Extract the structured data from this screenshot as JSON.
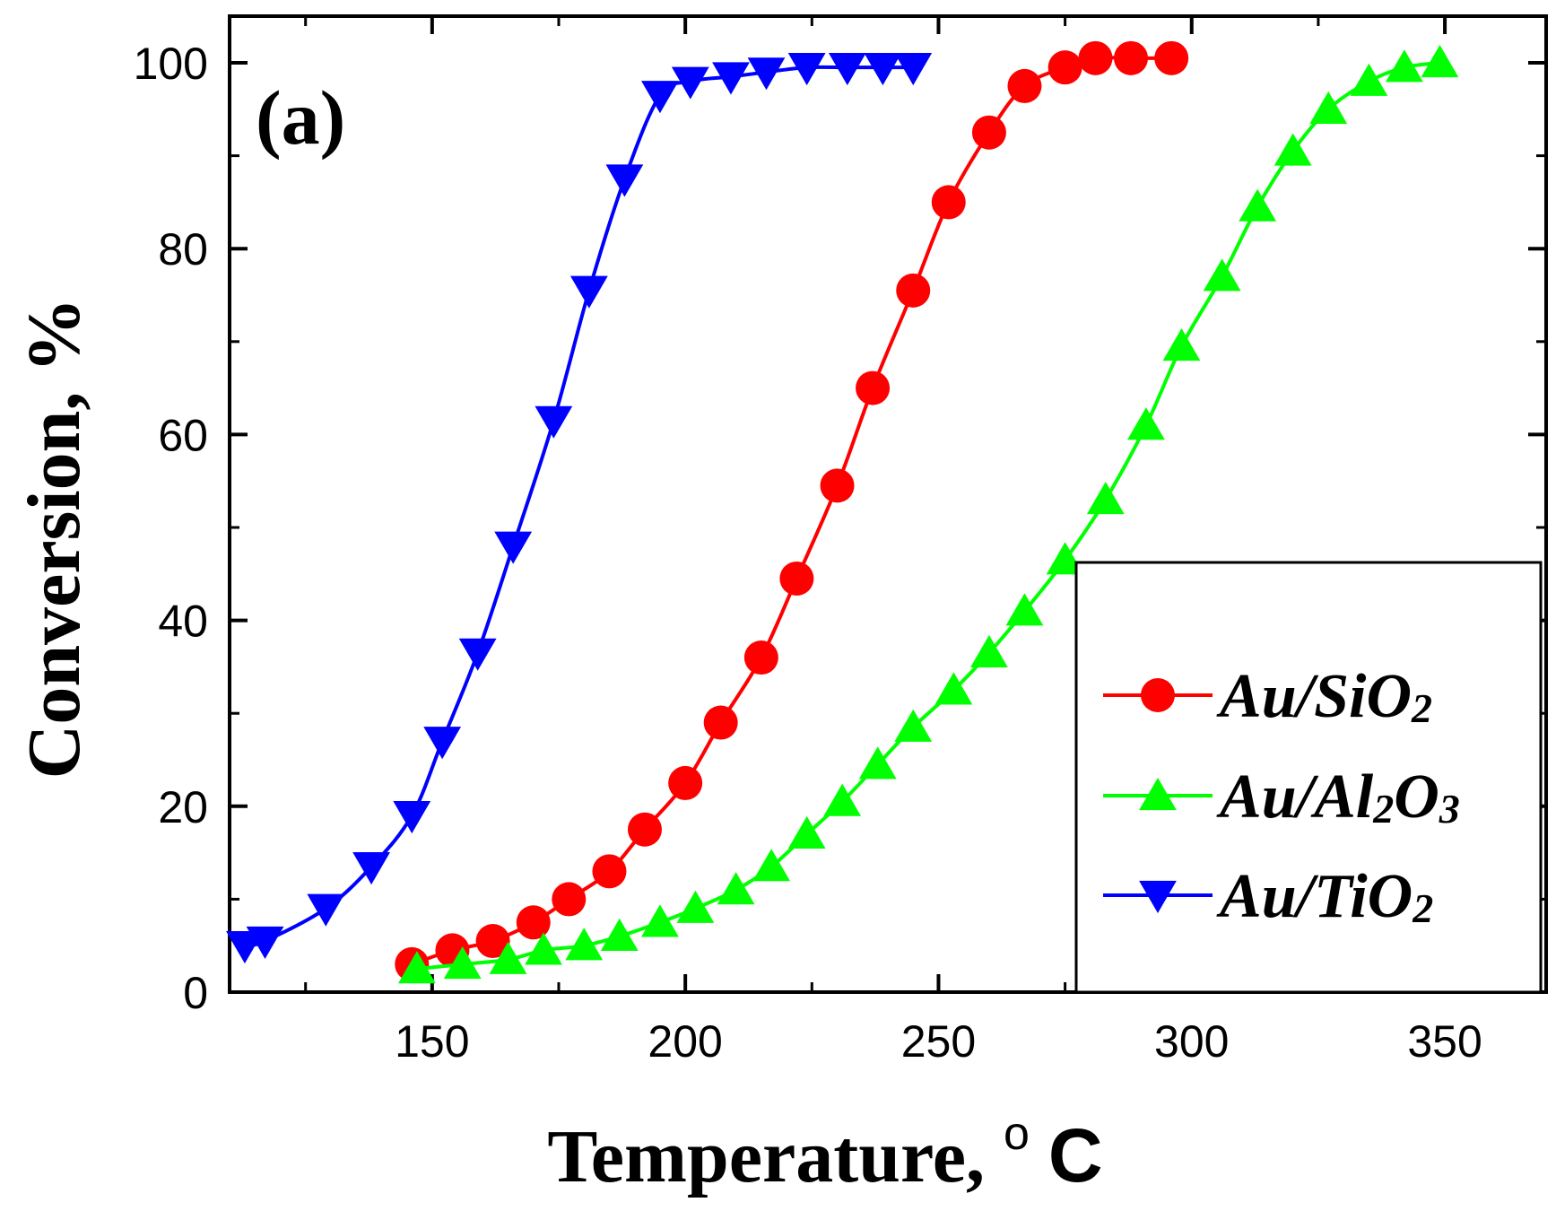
{
  "chart_data": {
    "type": "line",
    "panel_label": "(a)",
    "title": "",
    "xlabel": "Temperature,",
    "xlabel_unit_degree": "o",
    "xlabel_unit": "C",
    "ylabel": "Conversion, %",
    "xlim": [
      110,
      370
    ],
    "ylim": [
      0,
      100
    ],
    "xticks": [
      150,
      200,
      250,
      300,
      350
    ],
    "yticks": [
      0,
      20,
      40,
      60,
      80,
      100
    ],
    "grid": false,
    "legend_position": "bottom-right",
    "series": [
      {
        "name": "Au/SiO2",
        "legend_main": "Au/SiO",
        "legend_sub": "2",
        "color": "#ff0000",
        "marker": "circle",
        "x": [
          146,
          154,
          162,
          170,
          177,
          185,
          192,
          200,
          207,
          215,
          222,
          230,
          237,
          245,
          252,
          260,
          267,
          275,
          281,
          288,
          296
        ],
        "y": [
          3,
          4.5,
          5.5,
          7.5,
          10,
          13,
          17.5,
          22.5,
          29,
          36,
          44.5,
          54.5,
          65,
          75.5,
          85,
          92.5,
          97.5,
          99.5,
          100.5,
          100.5,
          100.5
        ]
      },
      {
        "name": "Au/Al2O3",
        "legend_main": "Au/Al",
        "legend_sub": "2",
        "legend_main2": "O",
        "legend_sub2": "3",
        "color": "#00ff00",
        "marker": "triangle-up",
        "x": [
          147,
          156,
          165,
          172,
          180,
          187,
          195,
          202,
          210,
          217,
          224,
          231,
          238,
          245,
          253,
          260,
          267,
          275,
          283,
          291,
          298,
          306,
          313,
          320,
          327,
          335,
          342,
          349
        ],
        "y": [
          2.5,
          3,
          3.5,
          4.5,
          5,
          6,
          7.5,
          9,
          11,
          13.5,
          17,
          20.5,
          24.5,
          28.5,
          32.5,
          36.5,
          41,
          46.5,
          53,
          61,
          69.5,
          77,
          84.5,
          90.5,
          95,
          98,
          99.5,
          100
        ]
      },
      {
        "name": "Au/TiO2",
        "legend_main": "Au/TiO",
        "legend_sub": "2",
        "color": "#0000ff",
        "marker": "triangle-down",
        "x": [
          113,
          117,
          129,
          138,
          146,
          152,
          159,
          166,
          174,
          181,
          188,
          195,
          201,
          209,
          216,
          224,
          232,
          239,
          245
        ],
        "y": [
          5,
          5.5,
          9,
          13.5,
          19,
          27,
          36.5,
          48,
          61.5,
          75.5,
          87.5,
          96.5,
          98,
          98.5,
          99,
          99.5,
          99.5,
          99.5,
          99.5
        ]
      }
    ]
  }
}
